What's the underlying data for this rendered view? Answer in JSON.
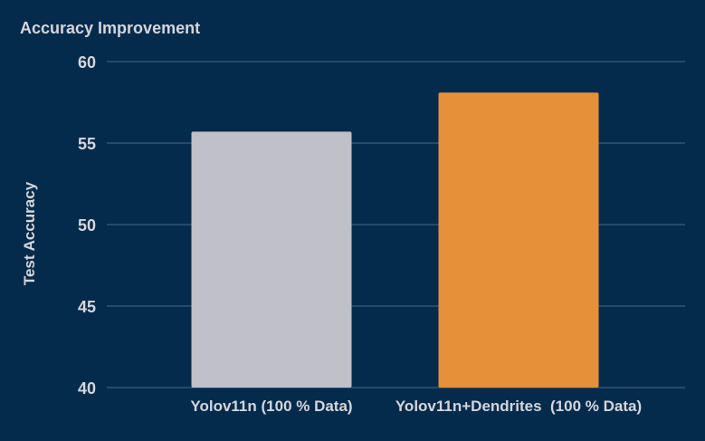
{
  "chart_data": {
    "type": "bar",
    "title": "Accuracy Improvement",
    "xlabel": "",
    "ylabel": "Test Accuracy",
    "categories": [
      "Yolov11n (100 % Data)",
      "Yolov11n+Dendrites  (100 % Data)"
    ],
    "values": [
      55.7,
      58.1
    ],
    "colors": [
      "#c0c0c8",
      "#e5913a"
    ],
    "ylim": [
      40,
      60
    ],
    "yticks": [
      40,
      45,
      50,
      55,
      60
    ],
    "grid": true,
    "background": "#052b4c"
  }
}
